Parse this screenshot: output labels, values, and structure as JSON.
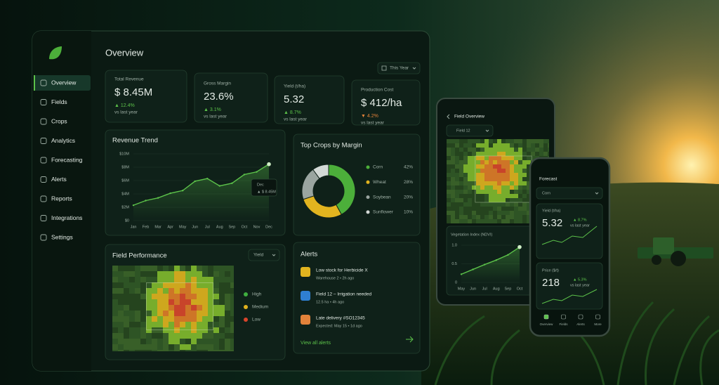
{
  "sidebar": {
    "items": [
      "Overview",
      "Fields",
      "Crops",
      "Analytics",
      "Forecasting",
      "Alerts",
      "Reports",
      "Integrations",
      "Settings"
    ]
  },
  "header": {
    "title": "Overview",
    "period": "This Year"
  },
  "kpis": [
    {
      "label": "Total Revenue",
      "value": "$ 8.45M",
      "change": "▲ 12.4%",
      "note": "vs last year"
    },
    {
      "label": "Gross Margin",
      "value": "23.6%",
      "change": "▲ 3.1%",
      "note": "vs last year"
    },
    {
      "label": "Yield (t/ha)",
      "value": "5.32",
      "change": "▲ 8.7%",
      "note": "vs last year"
    },
    {
      "label": "Production Cost",
      "value": "$ 412/ha",
      "change": "▼ 4.2%",
      "note": "vs last year"
    }
  ],
  "revenue_trend": {
    "title": "Revenue Trend",
    "categories": [
      "Jan",
      "Feb",
      "Mar",
      "Apr",
      "May",
      "Jun",
      "Jul",
      "Aug",
      "Sep",
      "Oct",
      "Nov",
      "Dec"
    ],
    "values": [
      2.3,
      3.0,
      3.4,
      4.1,
      4.5,
      5.9,
      6.3,
      5.2,
      5.6,
      6.9,
      7.3,
      8.45
    ],
    "ylim": [
      0,
      10
    ],
    "yticks": [
      {
        "value": 0,
        "label": "$0"
      },
      {
        "value": 2,
        "label": "$2M"
      },
      {
        "value": 4,
        "label": "$4M"
      },
      {
        "value": 6,
        "label": "$6M"
      },
      {
        "value": 8,
        "label": "$8M"
      },
      {
        "value": 10,
        "label": "$10M"
      }
    ],
    "color": "#5cc24a",
    "tooltip": {
      "label": "Dec",
      "value": "▲ $ 8.45M"
    }
  },
  "top_crops": {
    "title": "Top Crops by Margin",
    "categories": [
      "Corn",
      "Wheat",
      "Soybean",
      "Sunflower"
    ],
    "values": [
      42,
      28,
      20,
      10
    ],
    "value_labels": [
      "42%",
      "28%",
      "20%",
      "10%"
    ],
    "colors": [
      "#4caf3a",
      "#e2b41f",
      "#9aa5a0",
      "#d3d9d6"
    ]
  },
  "field_performance": {
    "title": "Field Performance",
    "metric": "Yield",
    "legend": [
      {
        "name": "High",
        "color": "#3fae3f"
      },
      {
        "name": "Medium",
        "color": "#e0b11e"
      },
      {
        "name": "Low",
        "color": "#d9442b"
      }
    ]
  },
  "alerts": {
    "title": "Alerts",
    "items": [
      {
        "title": "Low stock for Herbicide X",
        "detail": "Warehouse 2 • 2h ago"
      },
      {
        "title": "Field 12 – Irrigation needed",
        "detail": "12.5 ha • 4h ago"
      },
      {
        "title": "Late delivery #SO12345",
        "detail": "Expected: May 15 • 1d ago"
      }
    ],
    "link": "View all alerts"
  },
  "tablet": {
    "title": "Field Overview",
    "field": "Field 12",
    "ndvi": {
      "title": "Vegetation Index (NDVI)",
      "categories": [
        "May",
        "Jun",
        "Jul",
        "Aug",
        "Sep",
        "Oct"
      ],
      "values": [
        0.22,
        0.35,
        0.48,
        0.6,
        0.74,
        0.95
      ],
      "ylim": [
        0,
        1
      ],
      "yticks": [
        {
          "value": 1,
          "label": "1.0"
        },
        0.5,
        0
      ],
      "color": "#5cc24a"
    }
  },
  "phone": {
    "title": "Forecast",
    "crop": "Corn",
    "cards": [
      {
        "label": "Yield (t/ha)",
        "value": "5.32",
        "change": "▲ 8.7%",
        "note": "vs last year"
      },
      {
        "label": "Price ($/t)",
        "value": "218",
        "change": "▲ 5.3%",
        "note": "vs last year"
      }
    ],
    "nav": [
      "Overview",
      "Fields",
      "Alerts",
      "More"
    ]
  }
}
